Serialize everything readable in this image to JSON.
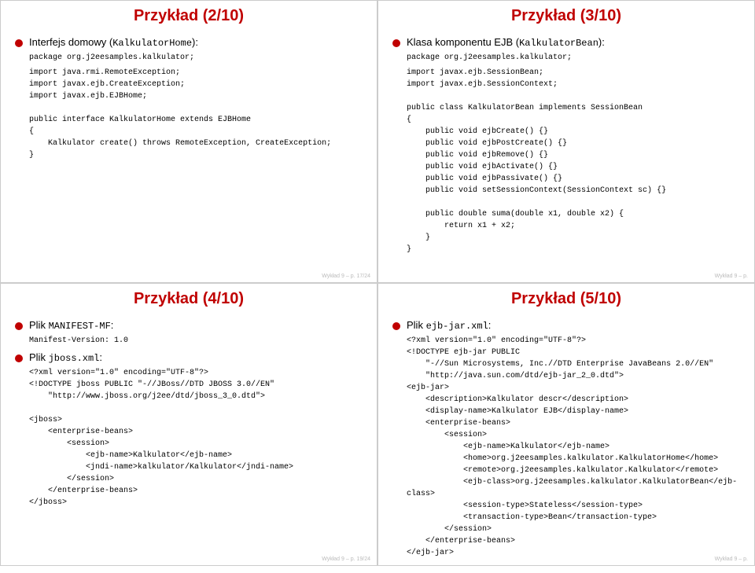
{
  "slides": {
    "s1": {
      "title": "Przykład (2/10)",
      "bullet1": "Interfejs domowy (",
      "bullet1_code": "KalkulatorHome",
      "bullet1_suffix": "):",
      "code1": "package org.j2eesamples.kalkulator;",
      "code2": "import java.rmi.RemoteException;\nimport javax.ejb.CreateException;\nimport javax.ejb.EJBHome;\n\npublic interface KalkulatorHome extends EJBHome\n{\n    Kalkulator create() throws RemoteException, CreateException;\n}",
      "footer": "Wykład 9 – p. 17/24"
    },
    "s2": {
      "title": "Przykład (3/10)",
      "bullet1": "Klasa komponentu EJB (",
      "bullet1_code": "KalkulatorBean",
      "bullet1_suffix": "):",
      "code1": "package org.j2eesamples.kalkulator;",
      "code2": "import javax.ejb.SessionBean;\nimport javax.ejb.SessionContext;\n\npublic class KalkulatorBean implements SessionBean\n{\n    public void ejbCreate() {}\n    public void ejbPostCreate() {}\n    public void ejbRemove() {}\n    public void ejbActivate() {}\n    public void ejbPassivate() {}\n    public void setSessionContext(SessionContext sc) {}\n\n    public double suma(double x1, double x2) {\n        return x1 + x2;\n    }\n}",
      "footer": "Wykład 9 – p."
    },
    "s3": {
      "title": "Przykład (4/10)",
      "bullet1": "Plik ",
      "bullet1_code": "MANIFEST-MF",
      "bullet1_suffix": ":",
      "code1": "Manifest-Version: 1.0",
      "bullet2": "Plik ",
      "bullet2_code": "jboss.xml",
      "bullet2_suffix": ":",
      "code2": "<?xml version=\"1.0\" encoding=\"UTF-8\"?>\n<!DOCTYPE jboss PUBLIC \"-//JBoss//DTD JBOSS 3.0//EN\"\n    \"http://www.jboss.org/j2ee/dtd/jboss_3_0.dtd\">\n\n<jboss>\n    <enterprise-beans>\n        <session>\n            <ejb-name>Kalkulator</ejb-name>\n            <jndi-name>kalkulator/Kalkulator</jndi-name>\n        </session>\n    </enterprise-beans>\n</jboss>",
      "footer": "Wykład 9 – p. 19/24"
    },
    "s4": {
      "title": "Przykład (5/10)",
      "bullet1": "Plik ",
      "bullet1_code": "ejb-jar.xml",
      "bullet1_suffix": ":",
      "code1": "<?xml version=\"1.0\" encoding=\"UTF-8\"?>\n<!DOCTYPE ejb-jar PUBLIC\n    \"-//Sun Microsystems, Inc.//DTD Enterprise JavaBeans 2.0//EN\"\n    \"http://java.sun.com/dtd/ejb-jar_2_0.dtd\">\n<ejb-jar>\n    <description>Kalkulator descr</description>\n    <display-name>Kalkulator EJB</display-name>\n    <enterprise-beans>\n        <session>\n            <ejb-name>Kalkulator</ejb-name>\n            <home>org.j2eesamples.kalkulator.KalkulatorHome</home>\n            <remote>org.j2eesamples.kalkulator.Kalkulator</remote>\n            <ejb-class>org.j2eesamples.kalkulator.KalkulatorBean</ejb-class>\n            <session-type>Stateless</session-type>\n            <transaction-type>Bean</transaction-type>\n        </session>\n    </enterprise-beans>\n</ejb-jar>",
      "footer": "Wykład 9 – p."
    }
  }
}
